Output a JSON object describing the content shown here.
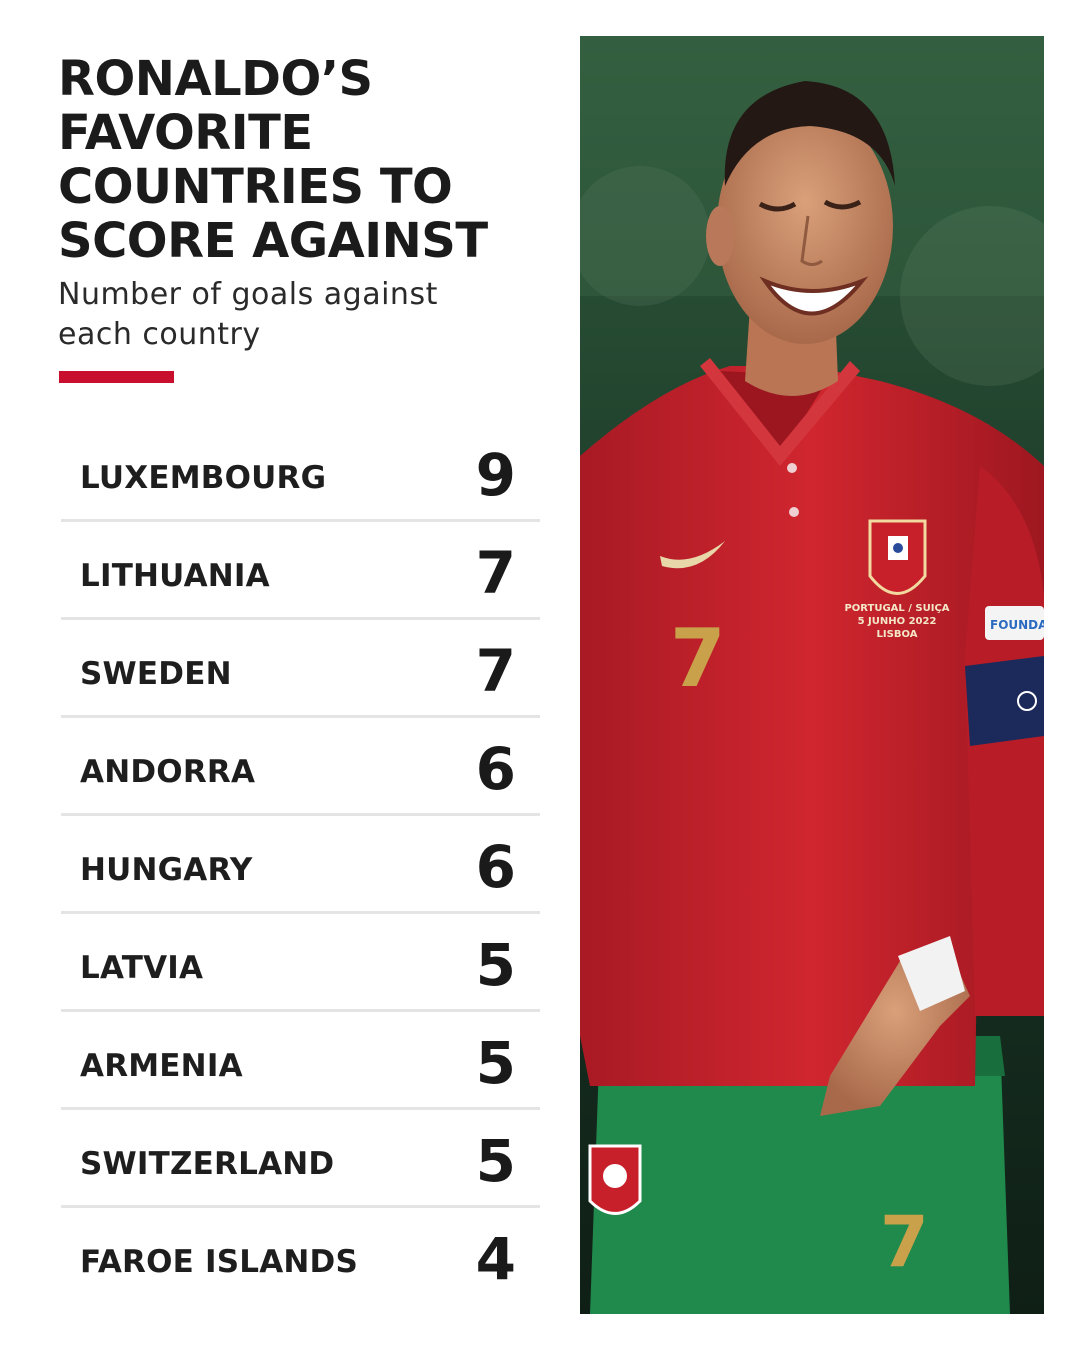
{
  "header": {
    "title_lines": [
      "RONALDO’S",
      "FAVORITE",
      "COUNTRIES TO",
      "SCORE AGAINST"
    ],
    "subtitle_lines": [
      "Number of goals against",
      "each country"
    ]
  },
  "colors": {
    "accent": "#c8102e",
    "row_divider": "#e4e4e4",
    "jersey": "#c8202b",
    "shorts": "#1f8a4c"
  },
  "rankings": [
    {
      "country": "LUXEMBOURG",
      "goals": "9"
    },
    {
      "country": "LITHUANIA",
      "goals": "7"
    },
    {
      "country": "SWEDEN",
      "goals": "7"
    },
    {
      "country": "ANDORRA",
      "goals": "6"
    },
    {
      "country": "HUNGARY",
      "goals": "6"
    },
    {
      "country": "LATVIA",
      "goals": "5"
    },
    {
      "country": "ARMENIA",
      "goals": "5"
    },
    {
      "country": "SWITZERLAND",
      "goals": "5"
    },
    {
      "country": "FAROE ISLANDS",
      "goals": "4"
    }
  ],
  "photo": {
    "jersey_number": "7",
    "crest_text": [
      "PORTUGAL / SUIÇA",
      "5 JUNHO 2022",
      "LISBOA"
    ],
    "sleeve_patch": "FOUNDA"
  }
}
